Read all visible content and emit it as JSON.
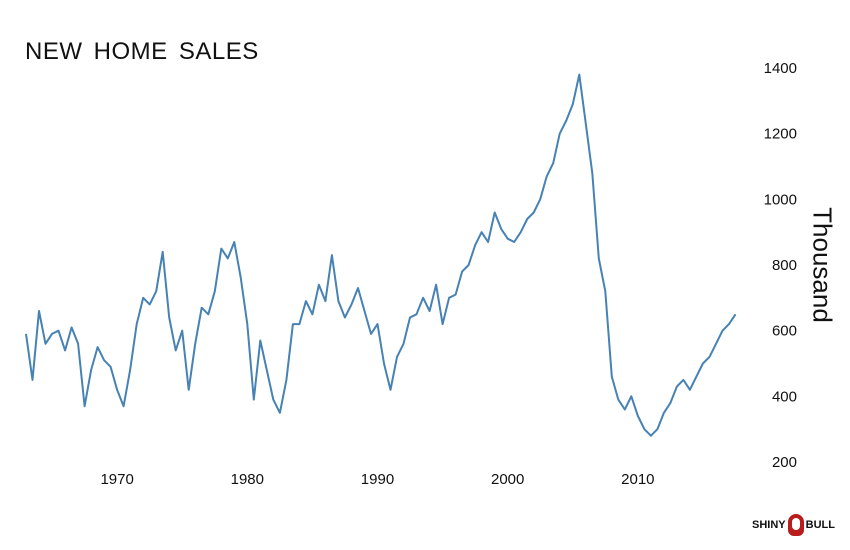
{
  "title": "NEW HOME SALES",
  "logo": {
    "left_text": "SHINY",
    "right_text": "BULL"
  },
  "colors": {
    "line": "#4682b4",
    "text": "#111111",
    "logo_red": "#b91c1c"
  },
  "chart_data": {
    "type": "line",
    "title": "NEW HOME SALES",
    "xlabel": "",
    "ylabel": "Thousand",
    "x_ticks": [
      "1970",
      "1980",
      "1990",
      "2000",
      "2010"
    ],
    "y_ticks": [
      "200",
      "400",
      "600",
      "800",
      "1000",
      "1200",
      "1400"
    ],
    "xlim": [
      1963,
      2018
    ],
    "ylim": [
      200,
      1400
    ],
    "grid": false,
    "legend": "none",
    "series": [
      {
        "x": [
          1963.0,
          1963.5,
          1964.0,
          1964.5,
          1965.0,
          1965.5,
          1966.0,
          1966.5,
          1967.0,
          1967.5,
          1968.0,
          1968.5,
          1969.0,
          1969.5,
          1970.0,
          1970.5,
          1971.0,
          1971.5,
          1972.0,
          1972.5,
          1973.0,
          1973.5,
          1974.0,
          1974.5,
          1975.0,
          1975.5,
          1976.0,
          1976.5,
          1977.0,
          1977.5,
          1978.0,
          1978.5,
          1979.0,
          1979.5,
          1980.0,
          1980.5,
          1981.0,
          1981.5,
          1982.0,
          1982.5,
          1983.0,
          1983.5,
          1984.0,
          1984.5,
          1985.0,
          1985.5,
          1986.0,
          1986.5,
          1987.0,
          1987.5,
          1988.0,
          1988.5,
          1989.0,
          1989.5,
          1990.0,
          1990.5,
          1991.0,
          1991.5,
          1992.0,
          1992.5,
          1993.0,
          1993.5,
          1994.0,
          1994.5,
          1995.0,
          1995.5,
          1996.0,
          1996.5,
          1997.0,
          1997.5,
          1998.0,
          1998.5,
          1999.0,
          1999.5,
          2000.0,
          2000.5,
          2001.0,
          2001.5,
          2002.0,
          2002.5,
          2003.0,
          2003.5,
          2004.0,
          2004.5,
          2005.0,
          2005.5,
          2006.0,
          2006.5,
          2007.0,
          2007.5,
          2008.0,
          2008.5,
          2009.0,
          2009.5,
          2010.0,
          2010.5,
          2011.0,
          2011.5,
          2012.0,
          2012.5,
          2013.0,
          2013.5,
          2014.0,
          2014.5,
          2015.0,
          2015.5,
          2016.0,
          2016.5,
          2017.0,
          2017.5
        ],
        "y": [
          590,
          450,
          660,
          560,
          590,
          600,
          540,
          610,
          560,
          370,
          480,
          550,
          510,
          490,
          420,
          370,
          480,
          620,
          700,
          680,
          720,
          840,
          640,
          540,
          600,
          420,
          560,
          670,
          650,
          720,
          850,
          820,
          870,
          760,
          620,
          390,
          570,
          480,
          390,
          350,
          450,
          620,
          620,
          690,
          650,
          740,
          690,
          830,
          690,
          640,
          680,
          730,
          660,
          590,
          620,
          500,
          420,
          520,
          560,
          640,
          650,
          700,
          660,
          740,
          620,
          700,
          710,
          780,
          800,
          860,
          900,
          870,
          960,
          910,
          880,
          870,
          900,
          940,
          960,
          1000,
          1070,
          1110,
          1200,
          1240,
          1290,
          1380,
          1230,
          1080,
          820,
          720,
          460,
          390,
          360,
          400,
          340,
          300,
          280,
          300,
          350,
          380,
          430,
          450,
          420,
          460,
          500,
          520,
          560,
          600,
          620,
          650
        ]
      }
    ]
  }
}
